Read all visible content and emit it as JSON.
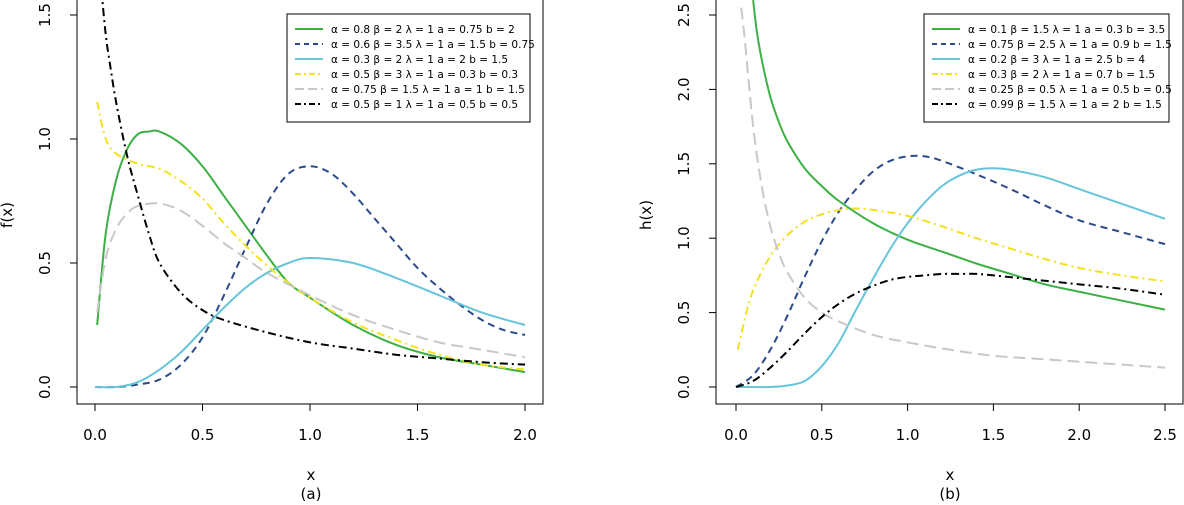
{
  "chart_data": [
    {
      "type": "line",
      "panel_label": "(a)",
      "xlabel": "x",
      "ylabel": "f(x)",
      "xlim": [
        0,
        2
      ],
      "ylim": [
        0,
        1.5
      ],
      "xticks": [
        "0.0",
        "0.5",
        "1.0",
        "1.5",
        "2.0"
      ],
      "yticks": [
        "0.0",
        "0.5",
        "1.0",
        "1.5"
      ],
      "legend_position": "top-right",
      "series": [
        {
          "name": "α = 0.8  β = 2  λ = 1  a = 0.75  b = 2",
          "color": "#3cb044",
          "dash": "solid",
          "x": [
            0.01,
            0.05,
            0.1,
            0.15,
            0.2,
            0.25,
            0.3,
            0.4,
            0.5,
            0.6,
            0.7,
            0.8,
            0.9,
            1.0,
            1.2,
            1.4,
            1.6,
            1.8,
            2.0
          ],
          "y": [
            0.25,
            0.62,
            0.84,
            0.96,
            1.02,
            1.03,
            1.03,
            0.98,
            0.89,
            0.77,
            0.65,
            0.53,
            0.42,
            0.36,
            0.25,
            0.17,
            0.12,
            0.09,
            0.06
          ]
        },
        {
          "name": "α = 0.6  β = 3.5  λ = 1  a = 1.5  b = 0.75",
          "color": "#2c4a8a",
          "dash": "dashed",
          "x": [
            0,
            0.1,
            0.2,
            0.3,
            0.4,
            0.5,
            0.6,
            0.7,
            0.8,
            0.9,
            1.0,
            1.1,
            1.2,
            1.3,
            1.4,
            1.5,
            1.6,
            1.7,
            1.8,
            1.9,
            2.0
          ],
          "y": [
            0,
            0.0,
            0.01,
            0.03,
            0.09,
            0.2,
            0.37,
            0.56,
            0.74,
            0.86,
            0.89,
            0.86,
            0.78,
            0.68,
            0.58,
            0.48,
            0.4,
            0.33,
            0.27,
            0.23,
            0.21
          ]
        },
        {
          "name": "α = 0.3  β = 2  λ = 1  a = 2  b = 1.5",
          "color": "#66c5da",
          "dash": "solid",
          "x": [
            0,
            0.1,
            0.2,
            0.3,
            0.4,
            0.5,
            0.6,
            0.7,
            0.8,
            0.9,
            1.0,
            1.2,
            1.4,
            1.6,
            1.8,
            2.0
          ],
          "y": [
            0,
            0.0,
            0.02,
            0.07,
            0.14,
            0.23,
            0.32,
            0.4,
            0.46,
            0.5,
            0.52,
            0.5,
            0.44,
            0.37,
            0.3,
            0.25
          ]
        },
        {
          "name": "α = 0.5  β = 3  λ = 1  a = 0.3  b = 0.3",
          "color": "#f2e21c",
          "dash": "dashdot",
          "x": [
            0.01,
            0.05,
            0.1,
            0.2,
            0.3,
            0.4,
            0.5,
            0.6,
            0.7,
            0.8,
            0.9,
            1.0,
            1.2,
            1.4,
            1.6,
            1.8,
            2.0
          ],
          "y": [
            1.15,
            1.0,
            0.94,
            0.9,
            0.88,
            0.83,
            0.76,
            0.66,
            0.57,
            0.49,
            0.42,
            0.36,
            0.26,
            0.19,
            0.13,
            0.09,
            0.07
          ]
        },
        {
          "name": "α = 0.75  β = 1.5  λ = 1  a = 1  b = 1.5",
          "color": "#c8c8c8",
          "dash": "longdash",
          "x": [
            0.01,
            0.05,
            0.1,
            0.15,
            0.2,
            0.3,
            0.4,
            0.5,
            0.6,
            0.7,
            0.8,
            1.0,
            1.2,
            1.4,
            1.6,
            1.8,
            2.0
          ],
          "y": [
            0.3,
            0.52,
            0.64,
            0.7,
            0.73,
            0.74,
            0.71,
            0.65,
            0.58,
            0.52,
            0.46,
            0.37,
            0.29,
            0.23,
            0.18,
            0.15,
            0.12
          ]
        },
        {
          "name": "α = 0.5  β = 1  λ = 1  a = 0.5  b = 0.5",
          "color": "#000000",
          "dash": "dashdot",
          "x": [
            0.03,
            0.05,
            0.07,
            0.1,
            0.15,
            0.2,
            0.25,
            0.3,
            0.4,
            0.5,
            0.6,
            0.8,
            1.0,
            1.2,
            1.4,
            1.6,
            1.8,
            2.0
          ],
          "y": [
            1.6,
            1.42,
            1.3,
            1.14,
            0.93,
            0.77,
            0.62,
            0.5,
            0.38,
            0.31,
            0.27,
            0.22,
            0.18,
            0.155,
            0.13,
            0.115,
            0.1,
            0.09
          ]
        }
      ]
    },
    {
      "type": "line",
      "panel_label": "(b)",
      "xlabel": "x",
      "ylabel": "h(x)",
      "xlim": [
        0,
        2.5
      ],
      "ylim": [
        0,
        2.5
      ],
      "xticks": [
        "0.0",
        "0.5",
        "1.0",
        "1.5",
        "2.0",
        "2.5"
      ],
      "yticks": [
        "0.0",
        "0.5",
        "1.0",
        "1.5",
        "2.0",
        "2.5"
      ],
      "legend_position": "top-right",
      "series": [
        {
          "name": "α = 0.1  β = 1.5  λ = 1  a = 0.3  b = 3.5",
          "color": "#3cb044",
          "dash": "solid",
          "x": [
            0.1,
            0.12,
            0.15,
            0.2,
            0.25,
            0.3,
            0.4,
            0.5,
            0.6,
            0.8,
            1.0,
            1.2,
            1.4,
            1.6,
            1.8,
            2.0,
            2.25,
            2.5
          ],
          "y": [
            2.6,
            2.4,
            2.2,
            1.95,
            1.78,
            1.65,
            1.47,
            1.35,
            1.25,
            1.1,
            0.99,
            0.91,
            0.83,
            0.76,
            0.69,
            0.64,
            0.58,
            0.52
          ]
        },
        {
          "name": "α = 0.75  β = 2.5  λ = 1  a = 0.9  b = 1.5",
          "color": "#2c4a8a",
          "dash": "dashed",
          "x": [
            0,
            0.1,
            0.2,
            0.3,
            0.4,
            0.5,
            0.6,
            0.7,
            0.8,
            0.9,
            1.0,
            1.1,
            1.2,
            1.4,
            1.6,
            1.8,
            2.0,
            2.25,
            2.5
          ],
          "y": [
            0,
            0.08,
            0.25,
            0.48,
            0.74,
            0.98,
            1.18,
            1.33,
            1.45,
            1.52,
            1.55,
            1.55,
            1.52,
            1.43,
            1.33,
            1.22,
            1.12,
            1.04,
            0.96
          ]
        },
        {
          "name": "α = 0.2  β = 3  λ = 1  a = 2.5  b = 4",
          "color": "#66c5da",
          "dash": "solid",
          "x": [
            0,
            0.2,
            0.3,
            0.4,
            0.5,
            0.6,
            0.7,
            0.8,
            0.9,
            1.0,
            1.1,
            1.2,
            1.3,
            1.4,
            1.5,
            1.6,
            1.8,
            2.0,
            2.25,
            2.5
          ],
          "y": [
            0,
            0.0,
            0.01,
            0.04,
            0.14,
            0.3,
            0.52,
            0.73,
            0.93,
            1.1,
            1.24,
            1.35,
            1.42,
            1.46,
            1.47,
            1.46,
            1.41,
            1.33,
            1.23,
            1.13
          ]
        },
        {
          "name": "α = 0.3  β = 2  λ = 1  a = 0.7  b = 1.5",
          "color": "#f2e21c",
          "dash": "dashdot",
          "x": [
            0.01,
            0.05,
            0.1,
            0.2,
            0.3,
            0.4,
            0.5,
            0.6,
            0.7,
            0.8,
            1.0,
            1.2,
            1.4,
            1.6,
            1.8,
            2.0,
            2.25,
            2.5
          ],
          "y": [
            0.25,
            0.45,
            0.65,
            0.88,
            1.02,
            1.11,
            1.16,
            1.19,
            1.2,
            1.19,
            1.15,
            1.08,
            1.0,
            0.93,
            0.86,
            0.8,
            0.75,
            0.71
          ]
        },
        {
          "name": "α = 0.25  β = 0.5  λ = 1  a = 0.5  b = 0.5",
          "color": "#c8c8c8",
          "dash": "longdash",
          "x": [
            0.03,
            0.05,
            0.1,
            0.15,
            0.2,
            0.25,
            0.3,
            0.4,
            0.5,
            0.6,
            0.8,
            1.0,
            1.25,
            1.5,
            1.75,
            2.0,
            2.25,
            2.5
          ],
          "y": [
            2.55,
            2.35,
            1.75,
            1.35,
            1.08,
            0.9,
            0.77,
            0.6,
            0.5,
            0.44,
            0.35,
            0.3,
            0.25,
            0.21,
            0.19,
            0.17,
            0.15,
            0.13
          ]
        },
        {
          "name": "α = 0.99  β = 1.5  λ = 1  a = 2  b = 1.5",
          "color": "#000000",
          "dash": "dashdot",
          "x": [
            0,
            0.1,
            0.2,
            0.3,
            0.4,
            0.5,
            0.6,
            0.7,
            0.8,
            0.9,
            1.0,
            1.1,
            1.2,
            1.3,
            1.4,
            1.5,
            1.75,
            2.0,
            2.25,
            2.5
          ],
          "y": [
            0,
            0.04,
            0.13,
            0.24,
            0.36,
            0.47,
            0.56,
            0.63,
            0.68,
            0.72,
            0.74,
            0.75,
            0.76,
            0.76,
            0.76,
            0.75,
            0.72,
            0.69,
            0.66,
            0.62
          ]
        }
      ]
    }
  ]
}
